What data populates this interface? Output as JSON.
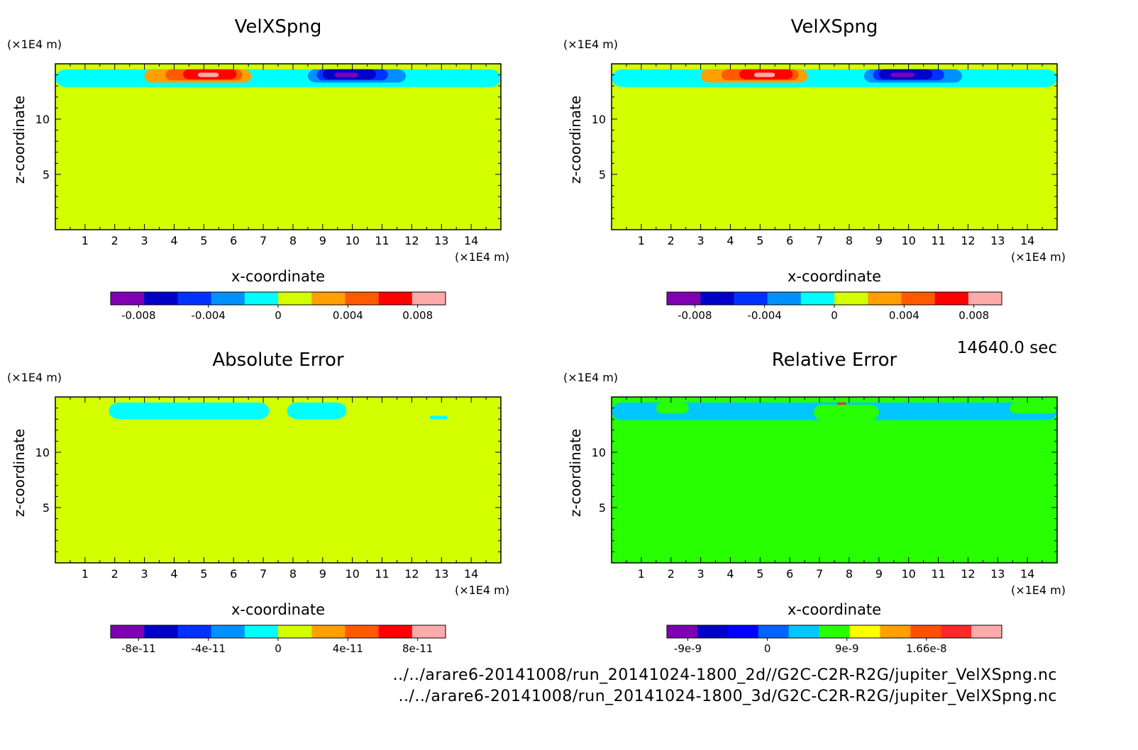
{
  "timestamp": "14640.0 sec",
  "footer": {
    "file1": "../../arare6-20141008/run_20141024-1800_2d//G2C-C2R-R2G/jupiter_VelXSpng.nc",
    "file2": "../../arare6-20141008/run_20141024-1800_3d/G2C-C2R-R2G/jupiter_VelXSpng.nc"
  },
  "chart_data": [
    {
      "type": "heatmap",
      "title": "VelXSpng",
      "xlabel": "x-coordinate",
      "ylabel": "z-coordinate",
      "x_unit": "(×1E4 m)",
      "y_unit": "(×1E4 m)",
      "xlim": [
        0,
        15
      ],
      "ylim": [
        0,
        15
      ],
      "xticks": [
        "1",
        "2",
        "3",
        "4",
        "5",
        "6",
        "7",
        "8",
        "9",
        "10",
        "11",
        "12",
        "13",
        "14"
      ],
      "yticks": [
        "5",
        "10"
      ],
      "background_color": "#d4ff00",
      "colorbar": {
        "colors": [
          "#7f00b2",
          "#0000c8",
          "#0032ff",
          "#0091ff",
          "#00ffff",
          "#d4ff00",
          "#ffa000",
          "#ff5a00",
          "#ff0000",
          "#ffaaaa"
        ],
        "ticks": [
          "-0.008",
          "-0.004",
          "0",
          "0.004",
          "0.008"
        ]
      },
      "fields": [
        {
          "level": "0",
          "color": "#00ffff",
          "x": [
            0,
            15
          ],
          "z": [
            12.9,
            14.5
          ]
        },
        {
          "level": "0.004",
          "color": "#ffa000",
          "x": [
            3.0,
            6.6
          ],
          "z": [
            13.3,
            14.5
          ]
        },
        {
          "level": "0.006",
          "color": "#ff5a00",
          "x": [
            3.7,
            6.3
          ],
          "z": [
            13.5,
            14.5
          ]
        },
        {
          "level": "0.008",
          "color": "#ff0000",
          "x": [
            4.3,
            6.1
          ],
          "z": [
            13.6,
            14.5
          ]
        },
        {
          "level": "0.01",
          "color": "#ffaaaa",
          "x": [
            4.8,
            5.5
          ],
          "z": [
            13.8,
            14.2
          ]
        },
        {
          "level": "-0.004",
          "color": "#0091ff",
          "x": [
            8.5,
            11.8
          ],
          "z": [
            13.3,
            14.5
          ]
        },
        {
          "level": "-0.006",
          "color": "#0032ff",
          "x": [
            8.8,
            11.2
          ],
          "z": [
            13.5,
            14.5
          ]
        },
        {
          "level": "-0.008",
          "color": "#0000c8",
          "x": [
            9.0,
            10.8
          ],
          "z": [
            13.6,
            14.5
          ]
        },
        {
          "level": "-0.01",
          "color": "#7f00b2",
          "x": [
            9.4,
            10.2
          ],
          "z": [
            13.8,
            14.2
          ]
        }
      ]
    },
    {
      "type": "heatmap",
      "title": "VelXSpng",
      "xlabel": "x-coordinate",
      "ylabel": "z-coordinate",
      "x_unit": "(×1E4 m)",
      "y_unit": "(×1E4 m)",
      "xlim": [
        0,
        15
      ],
      "ylim": [
        0,
        15
      ],
      "xticks": [
        "1",
        "2",
        "3",
        "4",
        "5",
        "6",
        "7",
        "8",
        "9",
        "10",
        "11",
        "12",
        "13",
        "14"
      ],
      "yticks": [
        "5",
        "10"
      ],
      "background_color": "#d4ff00",
      "colorbar": {
        "colors": [
          "#7f00b2",
          "#0000c8",
          "#0032ff",
          "#0091ff",
          "#00ffff",
          "#d4ff00",
          "#ffa000",
          "#ff5a00",
          "#ff0000",
          "#ffaaaa"
        ],
        "ticks": [
          "-0.008",
          "-0.004",
          "0",
          "0.004",
          "0.008"
        ]
      },
      "fields": [
        {
          "level": "0",
          "color": "#00ffff",
          "x": [
            0,
            15
          ],
          "z": [
            12.9,
            14.5
          ]
        },
        {
          "level": "0.004",
          "color": "#ffa000",
          "x": [
            3.0,
            6.6
          ],
          "z": [
            13.3,
            14.5
          ]
        },
        {
          "level": "0.006",
          "color": "#ff5a00",
          "x": [
            3.7,
            6.3
          ],
          "z": [
            13.5,
            14.5
          ]
        },
        {
          "level": "0.008",
          "color": "#ff0000",
          "x": [
            4.3,
            6.1
          ],
          "z": [
            13.6,
            14.5
          ]
        },
        {
          "level": "0.01",
          "color": "#ffaaaa",
          "x": [
            4.8,
            5.5
          ],
          "z": [
            13.8,
            14.2
          ]
        },
        {
          "level": "-0.004",
          "color": "#0091ff",
          "x": [
            8.5,
            11.8
          ],
          "z": [
            13.3,
            14.5
          ]
        },
        {
          "level": "-0.006",
          "color": "#0032ff",
          "x": [
            8.8,
            11.2
          ],
          "z": [
            13.5,
            14.5
          ]
        },
        {
          "level": "-0.008",
          "color": "#0000c8",
          "x": [
            9.0,
            10.8
          ],
          "z": [
            13.6,
            14.5
          ]
        },
        {
          "level": "-0.01",
          "color": "#7f00b2",
          "x": [
            9.4,
            10.2
          ],
          "z": [
            13.8,
            14.2
          ]
        }
      ]
    },
    {
      "type": "heatmap",
      "title": "Absolute Error",
      "xlabel": "x-coordinate",
      "ylabel": "z-coordinate",
      "x_unit": "(×1E4 m)",
      "y_unit": "(×1E4 m)",
      "xlim": [
        0,
        15
      ],
      "ylim": [
        0,
        15
      ],
      "xticks": [
        "1",
        "2",
        "3",
        "4",
        "5",
        "6",
        "7",
        "8",
        "9",
        "10",
        "11",
        "12",
        "13",
        "14"
      ],
      "yticks": [
        "5",
        "10"
      ],
      "background_color": "#d4ff00",
      "colorbar": {
        "colors": [
          "#7f00b2",
          "#0000c8",
          "#0032ff",
          "#0091ff",
          "#00ffff",
          "#d4ff00",
          "#ffa000",
          "#ff5a00",
          "#ff0000",
          "#ffaaaa"
        ],
        "ticks": [
          "-8e-11",
          "-4e-11",
          "0",
          "4e-11",
          "8e-11"
        ]
      },
      "fields": [
        {
          "level": "-2e-11",
          "color": "#00ffff",
          "x": [
            1.8,
            7.2
          ],
          "z": [
            13.0,
            14.5
          ]
        },
        {
          "level": "-2e-11",
          "color": "#00ffff",
          "x": [
            7.8,
            9.8
          ],
          "z": [
            13.0,
            14.5
          ]
        },
        {
          "level": "-2e-11",
          "color": "#00ffff",
          "x": [
            12.6,
            13.2
          ],
          "z": [
            13.0,
            13.3
          ]
        }
      ]
    },
    {
      "type": "heatmap",
      "title": "Relative Error",
      "xlabel": "x-coordinate",
      "ylabel": "z-coordinate",
      "x_unit": "(×1E4 m)",
      "y_unit": "(×1E4 m)",
      "xlim": [
        0,
        15
      ],
      "ylim": [
        0,
        15
      ],
      "xticks": [
        "1",
        "2",
        "3",
        "4",
        "5",
        "6",
        "7",
        "8",
        "9",
        "10",
        "11",
        "12",
        "13",
        "14"
      ],
      "yticks": [
        "5",
        "10"
      ],
      "background_color": "#28ff00",
      "colorbar": {
        "colors": [
          "#7f00b2",
          "#0000c8",
          "#0000ff",
          "#0064ff",
          "#00c8ff",
          "#28ff00",
          "#ffff00",
          "#ffa000",
          "#ff5000",
          "#ff2828",
          "#ffaaaa"
        ],
        "ticks": [
          "-9e-9",
          "0",
          "9e-9",
          "1.66e-8"
        ]
      },
      "fields": [
        {
          "level": "-3e-9",
          "color": "#00c8ff",
          "x": [
            0,
            15
          ],
          "z": [
            12.9,
            14.5
          ]
        },
        {
          "level": "0",
          "color": "#28ff00",
          "x": [
            1.5,
            2.6
          ],
          "z": [
            13.5,
            14.5
          ]
        },
        {
          "level": "0",
          "color": "#28ff00",
          "x": [
            13.4,
            15
          ],
          "z": [
            13.5,
            14.5
          ]
        },
        {
          "level": "0",
          "color": "#28ff00",
          "x": [
            6.8,
            9.0
          ],
          "z": [
            12.9,
            14.3
          ]
        },
        {
          "level": "1.66e-8",
          "color": "#ff2828",
          "x": [
            7.6,
            7.9
          ],
          "z": [
            14.3,
            14.5
          ]
        }
      ]
    }
  ]
}
